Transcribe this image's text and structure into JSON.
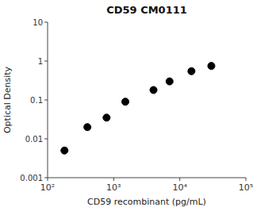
{
  "chart_data": {
    "type": "scatter",
    "title": "CD59 CM0111",
    "xlabel": "CD59 recombinant (pg/mL)",
    "ylabel": "Optical Density",
    "x": [
      180,
      400,
      780,
      1500,
      4000,
      7000,
      15000,
      30000
    ],
    "values": [
      0.005,
      0.02,
      0.035,
      0.09,
      0.18,
      0.3,
      0.55,
      0.75
    ],
    "xlim": [
      100,
      100000
    ],
    "ylim": [
      0.001,
      10
    ],
    "log": true,
    "xticks": [
      {
        "value": 100,
        "label": "10²"
      },
      {
        "value": 1000,
        "label": "10³"
      },
      {
        "value": 10000,
        "label": "10⁴"
      },
      {
        "value": 100000,
        "label": "10⁵"
      }
    ],
    "yticks": [
      0.001,
      0.01,
      0.1,
      1,
      10
    ],
    "color": "black",
    "marker": "circle",
    "grid": false
  }
}
